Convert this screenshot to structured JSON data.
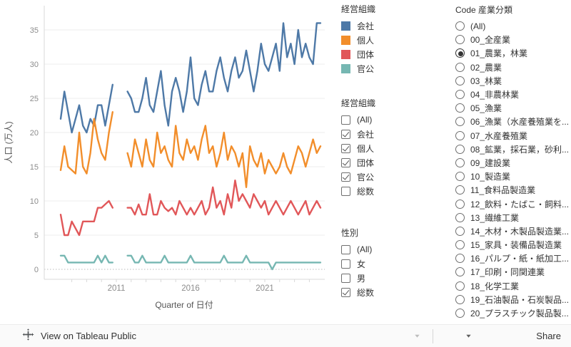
{
  "chart": {
    "y_axis_title": "人口 (万人)",
    "x_axis_title": "Quarter of 日付",
    "y_ticks": [
      0,
      5,
      10,
      15,
      20,
      25,
      30,
      35
    ],
    "x_tick_years": [
      2011,
      2016,
      2021
    ]
  },
  "chart_data": {
    "type": "line",
    "title": "",
    "xlabel": "Quarter of 日付",
    "ylabel": "人口 (万人)",
    "ylim": [
      0,
      37
    ],
    "grid": true,
    "legend_position": "right",
    "x_tick_labels": [
      2011,
      2016,
      2021
    ],
    "quarters": [
      "2007 Q2",
      "2007 Q3",
      "2007 Q4",
      "2008 Q1",
      "2008 Q2",
      "2008 Q3",
      "2008 Q4",
      "2009 Q1",
      "2009 Q2",
      "2009 Q3",
      "2009 Q4",
      "2010 Q1",
      "2010 Q2",
      "2010 Q3",
      "2010 Q4",
      "2011 Q1",
      "2011 Q2",
      "2011 Q3",
      "2011 Q4",
      "2012 Q1",
      "2012 Q2",
      "2012 Q3",
      "2012 Q4",
      "2013 Q1",
      "2013 Q2",
      "2013 Q3",
      "2013 Q4",
      "2014 Q1",
      "2014 Q2",
      "2014 Q3",
      "2014 Q4",
      "2015 Q1",
      "2015 Q2",
      "2015 Q3",
      "2015 Q4",
      "2016 Q1",
      "2016 Q2",
      "2016 Q3",
      "2016 Q4",
      "2017 Q1",
      "2017 Q2",
      "2017 Q3",
      "2017 Q4",
      "2018 Q1",
      "2018 Q2",
      "2018 Q3",
      "2018 Q4",
      "2019 Q1",
      "2019 Q2",
      "2019 Q3",
      "2019 Q4",
      "2020 Q1",
      "2020 Q2",
      "2020 Q3",
      "2020 Q4",
      "2021 Q1",
      "2021 Q2",
      "2021 Q3",
      "2021 Q4",
      "2022 Q1",
      "2022 Q2",
      "2022 Q3",
      "2022 Q4",
      "2023 Q1",
      "2023 Q2",
      "2023 Q3",
      "2023 Q4",
      "2024 Q1",
      "2024 Q2",
      "2024 Q3",
      "2024 Q4"
    ],
    "series": [
      {
        "name": "会社",
        "key": "company",
        "color": "#4e79a7",
        "values": [
          22,
          26,
          23,
          20,
          22,
          24,
          21,
          20,
          22,
          21,
          24,
          24,
          21,
          24,
          27,
          null,
          null,
          null,
          26,
          25,
          23,
          23,
          25,
          28,
          24,
          23,
          26,
          29,
          24,
          21,
          26,
          28,
          26,
          23,
          26,
          31,
          25,
          24,
          27,
          29,
          26,
          26,
          29,
          31,
          28,
          26,
          29,
          31,
          28,
          29,
          32,
          29,
          26,
          29,
          33,
          30,
          29,
          31,
          33,
          29,
          36,
          31,
          33,
          30,
          35,
          31,
          33,
          31,
          30,
          36,
          36
        ]
      },
      {
        "name": "個人",
        "key": "individual",
        "color": "#f28e2b",
        "values": [
          14.5,
          18,
          15,
          14.5,
          14,
          20,
          15,
          14,
          17,
          22,
          19,
          17,
          16,
          20,
          23,
          null,
          null,
          null,
          17,
          15,
          19,
          17,
          15,
          19,
          16,
          15,
          20,
          17,
          18,
          16,
          15,
          21,
          17,
          16,
          19,
          17,
          18,
          16,
          19,
          21,
          17,
          18,
          15,
          17,
          20,
          16,
          18,
          17,
          15,
          17,
          12,
          18,
          16,
          15,
          17,
          14,
          16,
          15,
          14,
          15,
          17,
          15,
          14,
          16,
          18,
          17,
          15,
          17,
          19,
          17,
          18
        ]
      },
      {
        "name": "団体",
        "key": "organization",
        "color": "#e15759",
        "values": [
          8,
          5,
          5,
          7,
          6,
          5,
          7,
          7,
          7,
          7,
          9,
          9,
          9.5,
          10,
          9,
          null,
          null,
          null,
          9,
          9,
          8,
          9.5,
          8,
          8,
          11,
          8,
          8,
          10,
          9,
          8.5,
          9,
          8,
          10,
          9,
          8,
          9,
          8,
          9,
          10,
          8,
          9,
          12,
          9,
          10,
          8,
          11,
          9,
          13,
          10,
          11,
          10,
          9,
          11,
          10,
          9,
          10,
          8,
          9,
          10,
          9,
          8,
          9,
          10,
          9,
          8,
          9,
          10,
          8,
          9,
          10,
          9
        ]
      },
      {
        "name": "官公",
        "key": "government",
        "color": "#76b7b2",
        "values": [
          2,
          2,
          1,
          1,
          1,
          1,
          1,
          1,
          1,
          1,
          2,
          1,
          2,
          1,
          1,
          null,
          null,
          null,
          2,
          2,
          1,
          1,
          2,
          1,
          1,
          1,
          1,
          1,
          2,
          1,
          1,
          1,
          1,
          1,
          1,
          2,
          1,
          1,
          1,
          1,
          1,
          1,
          1,
          1,
          2,
          1,
          1,
          1,
          1,
          1,
          2,
          1,
          1,
          1,
          1,
          1,
          1,
          0,
          1,
          1,
          1,
          1,
          1,
          1,
          1,
          1,
          1,
          1,
          1,
          1,
          1
        ]
      }
    ]
  },
  "legend": {
    "title": "経営組織",
    "items": [
      {
        "label": "会社",
        "color": "#4e79a7"
      },
      {
        "label": "個人",
        "color": "#f28e2b"
      },
      {
        "label": "団体",
        "color": "#e15759"
      },
      {
        "label": "官公",
        "color": "#76b7b2"
      }
    ]
  },
  "filters": {
    "keiei": {
      "title": "経営組織",
      "items": [
        {
          "label": "(All)",
          "checked": false
        },
        {
          "label": "会社",
          "checked": true
        },
        {
          "label": "個人",
          "checked": true
        },
        {
          "label": "団体",
          "checked": true
        },
        {
          "label": "官公",
          "checked": true
        },
        {
          "label": "総数",
          "checked": false
        }
      ]
    },
    "seibetsu": {
      "title": "性別",
      "items": [
        {
          "label": "(All)",
          "checked": false
        },
        {
          "label": "女",
          "checked": false
        },
        {
          "label": "男",
          "checked": false
        },
        {
          "label": "総数",
          "checked": true
        }
      ]
    }
  },
  "industry_filter": {
    "title": "Code 産業分類",
    "items": [
      {
        "label": "(All)",
        "selected": false
      },
      {
        "label": "00_全産業",
        "selected": false
      },
      {
        "label": "01_農業，林業",
        "selected": true
      },
      {
        "label": "02_農業",
        "selected": false
      },
      {
        "label": "03_林業",
        "selected": false
      },
      {
        "label": "04_非農林業",
        "selected": false
      },
      {
        "label": "05_漁業",
        "selected": false
      },
      {
        "label": "06_漁業（水産養殖業を...",
        "selected": false
      },
      {
        "label": "07_水産養殖業",
        "selected": false
      },
      {
        "label": "08_鉱業，採石業，砂利...",
        "selected": false
      },
      {
        "label": "09_建設業",
        "selected": false
      },
      {
        "label": "10_製造業",
        "selected": false
      },
      {
        "label": "11_食料品製造業",
        "selected": false
      },
      {
        "label": "12_飲料・たばこ・飼料...",
        "selected": false
      },
      {
        "label": "13_繊維工業",
        "selected": false
      },
      {
        "label": "14_木材・木製品製造業...",
        "selected": false
      },
      {
        "label": "15_家具・装備品製造業",
        "selected": false
      },
      {
        "label": "16_パルプ・紙・紙加工...",
        "selected": false
      },
      {
        "label": "17_印刷・同関連業",
        "selected": false
      },
      {
        "label": "18_化学工業",
        "selected": false
      },
      {
        "label": "19_石油製品・石炭製品...",
        "selected": false
      },
      {
        "label": "20_プラスチック製品製...",
        "selected": false
      }
    ]
  },
  "toolbar": {
    "view_label": "View on Tableau Public",
    "share_label": "Share",
    "icons": [
      "tableau-logo-icon",
      "undo-icon",
      "redo-icon",
      "revert-icon",
      "refresh-icon",
      "caret-down-icon",
      "download-icon",
      "fullscreen-icon",
      "share-icon"
    ]
  },
  "colors": {
    "axis_text": "#8c8c8c",
    "axis_title": "#555555",
    "gridline": "#ececec",
    "zero_line": "#bbbbbb",
    "toolbar_icon": "#9b9b9b",
    "toolbar_icon_dark": "#5f5f5f",
    "toolbar_icon_disabled": "#c7c7c7"
  }
}
